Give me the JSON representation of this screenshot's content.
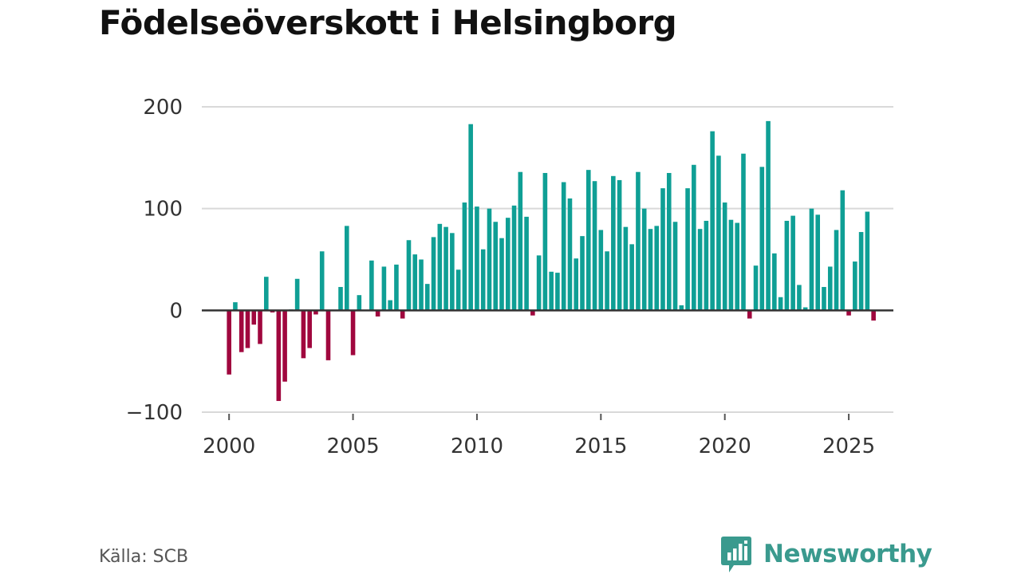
{
  "title": "Födelseöverskott i Helsingborg",
  "source": "Källa: SCB",
  "brand": {
    "name": "Newsworthy",
    "logo_icon": "bar-chart-speech-bubble-icon"
  },
  "colors": {
    "positive": "#0f9f95",
    "negative": "#a0073e",
    "zero_line": "#333333",
    "grid": "#d9d9d9",
    "brand": "#3a9a8e"
  },
  "chart_data": {
    "type": "bar",
    "title": "Födelseöverskott i Helsingborg",
    "xlabel": "",
    "ylabel": "",
    "x_start": 2000.0,
    "x_step": 0.25,
    "xlim": [
      1998.9,
      2026.8
    ],
    "ylim": [
      -100,
      200
    ],
    "xticks": [
      2000,
      2005,
      2010,
      2015,
      2020,
      2025
    ],
    "yticks": [
      -100,
      0,
      100,
      200
    ],
    "ytick_labels": [
      "−100",
      "0",
      "100",
      "200"
    ],
    "grid": true,
    "values": [
      -63,
      8,
      -41,
      -37,
      -14,
      -33,
      33,
      -2,
      -89,
      -70,
      1,
      31,
      -47,
      -37,
      -4,
      58,
      -49,
      0,
      23,
      83,
      -44,
      15,
      0,
      49,
      -6,
      43,
      10,
      45,
      -8,
      69,
      55,
      50,
      26,
      72,
      85,
      82,
      76,
      40,
      106,
      183,
      102,
      60,
      100,
      87,
      71,
      91,
      103,
      136,
      92,
      -5,
      54,
      135,
      38,
      37,
      126,
      110,
      51,
      73,
      138,
      127,
      79,
      58,
      132,
      128,
      82,
      65,
      136,
      100,
      80,
      83,
      120,
      135,
      87,
      5,
      120,
      143,
      80,
      88,
      176,
      152,
      106,
      89,
      86,
      154,
      -8,
      44,
      141,
      186,
      56,
      13,
      88,
      93,
      25,
      3,
      100,
      94,
      23,
      43,
      79,
      118,
      -5,
      48,
      77,
      97,
      -10
    ]
  }
}
